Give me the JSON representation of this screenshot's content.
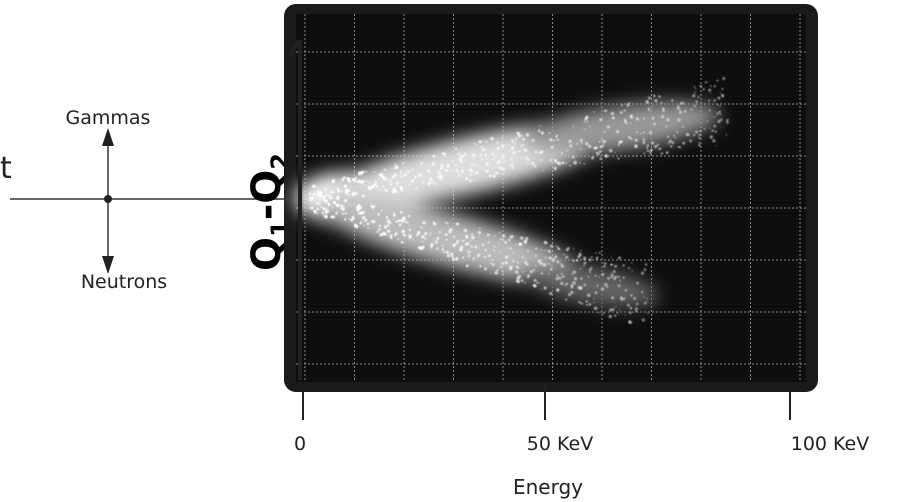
{
  "cut_text": "t",
  "direction_key": {
    "up": "Gammas",
    "down": "Neutrons"
  },
  "y_label": {
    "main": "Q",
    "sub1": "1",
    "dash": "-",
    "main2": "Q",
    "sub2": "2"
  },
  "x_axis": {
    "ticks": [
      "0",
      "50 KeV",
      "100 KeV"
    ],
    "title": "Energy"
  }
}
